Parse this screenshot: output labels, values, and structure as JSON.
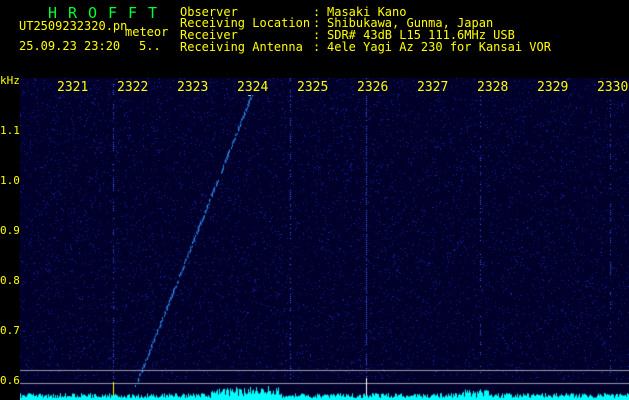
{
  "header": {
    "brand": [
      "H",
      "R",
      "O",
      "F",
      "F",
      "T"
    ],
    "filename": "UT2509232320.pn",
    "tag": "meteor",
    "datetime": "25.09.23 23:20",
    "count": "5..",
    "fields": [
      {
        "label": "Observer",
        "value": "Masaki Kano"
      },
      {
        "label": "Receiving Location",
        "value": "Shibukawa, Gunma, Japan"
      },
      {
        "label": "Receiver",
        "value": "SDR# 43dB L15 111.6MHz USB"
      },
      {
        "label": "Receiving Antenna",
        "value": "4ele Yagi Az 230 for Kansai VOR"
      }
    ]
  },
  "axis": {
    "y_unit": "kHz",
    "y_ticks": [
      "1.1",
      "1.0",
      "0.9",
      "0.8",
      "0.7",
      "0.6"
    ],
    "x_ticks": [
      "2321",
      "2322",
      "2323",
      "2324",
      "2325",
      "2326",
      "2327",
      "2328",
      "2329",
      "2330"
    ]
  },
  "colors": {
    "text": "#ffff00",
    "brand": "#00ff33",
    "background": "#00002a",
    "signal": "#3399ff",
    "spectrum": "#00ffff"
  }
}
